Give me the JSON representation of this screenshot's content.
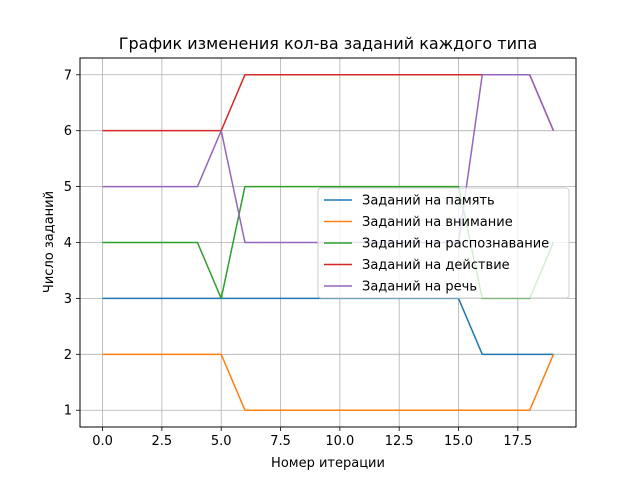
{
  "chart_data": {
    "type": "line",
    "title": "График изменения кол-ва заданий каждого типа",
    "xlabel": "Номер итерации",
    "ylabel": "Число заданий",
    "xlim": [
      -0.95,
      19.95
    ],
    "ylim": [
      0.7,
      7.3
    ],
    "xticks": [
      0.0,
      2.5,
      5.0,
      7.5,
      10.0,
      12.5,
      15.0,
      17.5
    ],
    "xtick_labels": [
      "0.0",
      "2.5",
      "5.0",
      "7.5",
      "10.0",
      "12.5",
      "15.0",
      "17.5"
    ],
    "yticks": [
      1,
      2,
      3,
      4,
      5,
      6,
      7
    ],
    "ytick_labels": [
      "1",
      "2",
      "3",
      "4",
      "5",
      "6",
      "7"
    ],
    "grid": true,
    "legend_position": "center-right",
    "x": [
      0,
      1,
      2,
      3,
      4,
      5,
      6,
      7,
      8,
      9,
      10,
      11,
      12,
      13,
      14,
      15,
      16,
      17,
      18,
      19
    ],
    "series": [
      {
        "name": "Заданий на память",
        "color": "#1f77b4",
        "values": [
          3,
          3,
          3,
          3,
          3,
          3,
          3,
          3,
          3,
          3,
          3,
          3,
          3,
          3,
          3,
          3,
          2,
          2,
          2,
          2
        ]
      },
      {
        "name": "Заданий на внимание",
        "color": "#ff7f0e",
        "values": [
          2,
          2,
          2,
          2,
          2,
          2,
          1,
          1,
          1,
          1,
          1,
          1,
          1,
          1,
          1,
          1,
          1,
          1,
          1,
          2
        ]
      },
      {
        "name": "Заданий на распознавание",
        "color": "#2ca02c",
        "values": [
          4,
          4,
          4,
          4,
          4,
          3,
          5,
          5,
          5,
          5,
          5,
          5,
          5,
          5,
          5,
          5,
          3,
          3,
          3,
          4
        ]
      },
      {
        "name": "Заданий на действие",
        "color": "#d62728",
        "values": [
          6,
          6,
          6,
          6,
          6,
          6,
          7,
          7,
          7,
          7,
          7,
          7,
          7,
          7,
          7,
          7,
          7,
          7,
          7,
          6
        ]
      },
      {
        "name": "Заданий на речь",
        "color": "#9467bd",
        "values": [
          5,
          5,
          5,
          5,
          5,
          6,
          4,
          4,
          4,
          4,
          4,
          4,
          4,
          4,
          4,
          4,
          7,
          7,
          7,
          6
        ]
      }
    ]
  }
}
